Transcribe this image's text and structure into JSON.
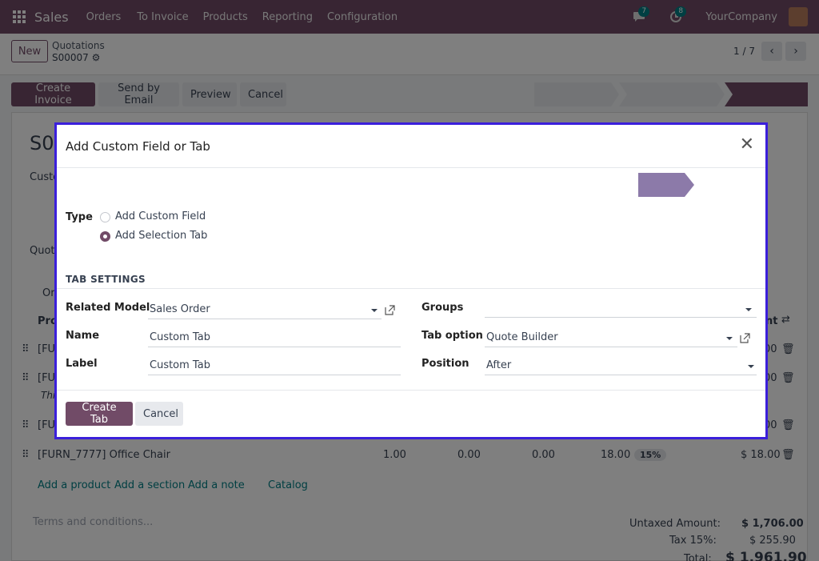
{
  "navbar": {
    "app_name": "Sales",
    "menus": [
      "Orders",
      "To Invoice",
      "Products",
      "Reporting",
      "Configuration"
    ],
    "messages_count": "7",
    "activities_count": "8",
    "company": "YourCompany"
  },
  "control_panel": {
    "new_label": "New",
    "breadcrumb": "Quotations",
    "record": "S00007",
    "pager": "1 / 7"
  },
  "status_bar": {
    "buttons": [
      "Create Invoice",
      "Send by Email",
      "Preview",
      "Cancel"
    ]
  },
  "background_form": {
    "title_partial": "S00",
    "customer_partial": "Custo",
    "quotation_partial": "Quot",
    "tab_partial": "Or",
    "col_product_partial": "Pro",
    "col_total_partial": "nt",
    "rows": [
      {
        "product_partial": "[FUR",
        "amount_partial": "00"
      },
      {
        "product_partial": "[FUR",
        "amount_partial": "00",
        "note_partial": "Thi"
      },
      {
        "product_partial": "[FUI",
        "amount_partial": "00"
      },
      {
        "product": "[FURN_7777] Office Chair",
        "qty": "1.00",
        "delivered": "0.00",
        "invoiced": "0.00",
        "price": "18.00",
        "tax": "15%",
        "subtotal": "$ 18.00"
      }
    ],
    "add_links": [
      "Add a product",
      "Add a section",
      "Add a note",
      "Catalog"
    ],
    "terms_placeholder": "Terms and conditions...",
    "totals": {
      "untaxed_label": "Untaxed Amount:",
      "untaxed_value": "$ 1,706.00",
      "tax_label": "Tax 15%:",
      "tax_value": "$ 255.90",
      "total_label": "Total:",
      "total_value": "$ 1,961.90"
    }
  },
  "modal": {
    "title": "Add Custom Field or Tab",
    "type_label": "Type",
    "type_options": [
      {
        "label": "Add Custom Field",
        "selected": false
      },
      {
        "label": "Add Selection Tab",
        "selected": true
      }
    ],
    "section_title": "TAB SETTINGS",
    "related_model_label": "Related Model",
    "related_model_value": "Sales Order",
    "name_label": "Name",
    "name_value": "Custom Tab",
    "label_label": "Label",
    "label_value": "Custom Tab",
    "groups_label": "Groups",
    "groups_value": "",
    "tab_option_label": "Tab option",
    "tab_option_value": "Quote Builder",
    "position_label": "Position",
    "position_value": "After",
    "create_label": "Create Tab",
    "cancel_label": "Cancel"
  },
  "colors": {
    "brand": "#714b67",
    "modal_border": "#3b1fdb",
    "backdrop": "rgba(0,0,0,0.5)"
  }
}
